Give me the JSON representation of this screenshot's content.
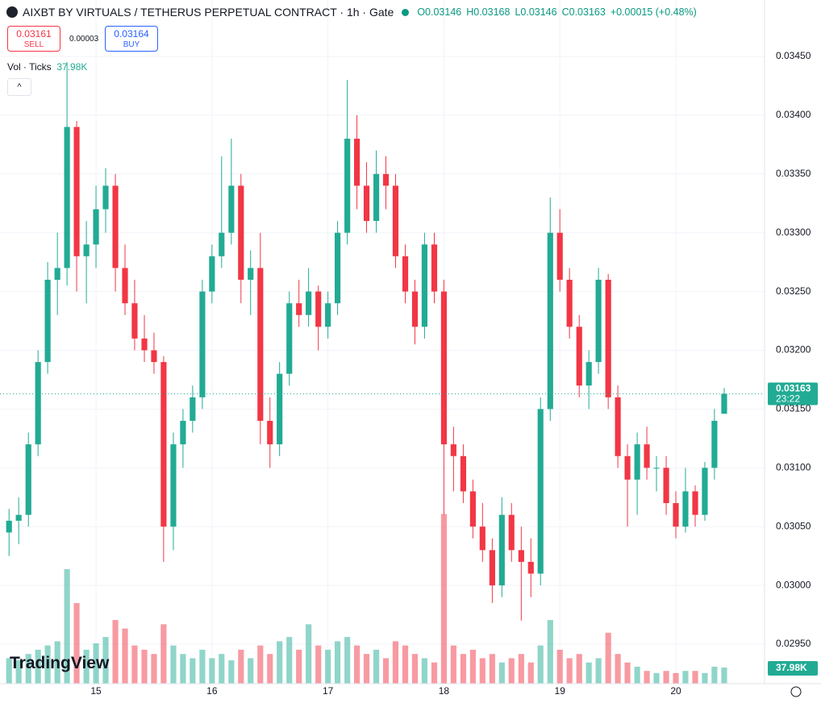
{
  "header": {
    "symbol": "AIXBT BY VIRTUALS / TETHERUS PERPETUAL CONTRACT · 1h · Gate",
    "open": "O0.03146",
    "high": "H0.03168",
    "low": "L0.03146",
    "close": "C0.03163",
    "change": "+0.00015 (+0.48%)"
  },
  "trade": {
    "sell_price": "0.03161",
    "sell": "SELL",
    "spread": "0.00003",
    "buy_price": "0.03164",
    "buy": "BUY"
  },
  "indicator": {
    "name": "Vol · Ticks"
  },
  "logo": "TradingView",
  "chart_data": {
    "type": "candlestick",
    "x": [
      14.25,
      14.333,
      14.417,
      14.5,
      14.583,
      14.667,
      14.75,
      14.833,
      14.917,
      15.0,
      15.083,
      15.167,
      15.25,
      15.333,
      15.417,
      15.5,
      15.583,
      15.667,
      15.75,
      15.833,
      15.917,
      16.0,
      16.083,
      16.167,
      16.25,
      16.333,
      16.417,
      16.5,
      16.583,
      16.667,
      16.75,
      16.833,
      16.917,
      17.0,
      17.083,
      17.167,
      17.25,
      17.333,
      17.417,
      17.5,
      17.583,
      17.667,
      17.75,
      17.833,
      17.917,
      18.0,
      18.083,
      18.167,
      18.25,
      18.333,
      18.417,
      18.5,
      18.583,
      18.667,
      18.75,
      18.833,
      18.917,
      19.0,
      19.083,
      19.167,
      19.25,
      19.333,
      19.417,
      19.5,
      19.583,
      19.667,
      19.75,
      19.833,
      19.917,
      20.0,
      20.083,
      20.167,
      20.25,
      20.333,
      20.417
    ],
    "open": [
      0.03045,
      0.03055,
      0.0306,
      0.0312,
      0.0319,
      0.0326,
      0.0327,
      0.0339,
      0.0328,
      0.0329,
      0.0332,
      0.0334,
      0.0327,
      0.0324,
      0.0321,
      0.032,
      0.0319,
      0.0305,
      0.0312,
      0.0314,
      0.0316,
      0.0325,
      0.0328,
      0.033,
      0.0334,
      0.0326,
      0.0327,
      0.0314,
      0.0312,
      0.0318,
      0.0324,
      0.0323,
      0.0325,
      0.0322,
      0.0324,
      0.033,
      0.0338,
      0.0334,
      0.0331,
      0.0335,
      0.0334,
      0.0328,
      0.0325,
      0.0322,
      0.0329,
      0.0325,
      0.0312,
      0.0311,
      0.0308,
      0.0305,
      0.0303,
      0.03,
      0.0306,
      0.0303,
      0.0302,
      0.0301,
      0.0315,
      0.033,
      0.0326,
      0.0322,
      0.0317,
      0.0319,
      0.0326,
      0.0316,
      0.0311,
      0.0309,
      0.0312,
      0.031,
      0.031,
      0.0307,
      0.0305,
      0.0308,
      0.0306,
      0.031,
      0.03146
    ],
    "high": [
      0.03065,
      0.03075,
      0.0313,
      0.032,
      0.03275,
      0.033,
      0.03445,
      0.03395,
      0.0331,
      0.0334,
      0.03355,
      0.0335,
      0.0329,
      0.0326,
      0.0323,
      0.03215,
      0.03195,
      0.0313,
      0.0315,
      0.0317,
      0.0326,
      0.0329,
      0.03365,
      0.0338,
      0.0335,
      0.03285,
      0.033,
      0.0316,
      0.0319,
      0.0325,
      0.0326,
      0.0327,
      0.03255,
      0.0325,
      0.0331,
      0.0343,
      0.034,
      0.0336,
      0.0337,
      0.03365,
      0.0335,
      0.0329,
      0.0326,
      0.033,
      0.033,
      0.0326,
      0.03135,
      0.0312,
      0.0309,
      0.0307,
      0.0304,
      0.03075,
      0.0307,
      0.0305,
      0.0304,
      0.0316,
      0.0333,
      0.0332,
      0.0327,
      0.0323,
      0.032,
      0.0327,
      0.03265,
      0.0317,
      0.0312,
      0.0313,
      0.03135,
      0.0311,
      0.0311,
      0.0308,
      0.031,
      0.03085,
      0.03105,
      0.0315,
      0.03168
    ],
    "low": [
      0.03025,
      0.03035,
      0.0305,
      0.0311,
      0.0318,
      0.0323,
      0.03255,
      0.0325,
      0.0324,
      0.0327,
      0.033,
      0.0325,
      0.0323,
      0.032,
      0.0319,
      0.0318,
      0.0302,
      0.0303,
      0.031,
      0.0313,
      0.0315,
      0.0324,
      0.0327,
      0.0329,
      0.0324,
      0.0323,
      0.0312,
      0.031,
      0.0311,
      0.0317,
      0.0322,
      0.0322,
      0.032,
      0.0321,
      0.0323,
      0.0329,
      0.0332,
      0.033,
      0.033,
      0.0332,
      0.0327,
      0.0324,
      0.03205,
      0.0321,
      0.0324,
      0.0306,
      0.0308,
      0.0307,
      0.0304,
      0.0302,
      0.02985,
      0.0299,
      0.0302,
      0.0297,
      0.0299,
      0.03,
      0.0314,
      0.0325,
      0.0321,
      0.0316,
      0.0315,
      0.0318,
      0.0315,
      0.031,
      0.0305,
      0.0306,
      0.0309,
      0.0308,
      0.0306,
      0.0304,
      0.03045,
      0.0305,
      0.03055,
      0.0309,
      0.03146
    ],
    "close": [
      0.03055,
      0.0306,
      0.0312,
      0.0319,
      0.0326,
      0.0327,
      0.0339,
      0.0328,
      0.0329,
      0.0332,
      0.0334,
      0.0327,
      0.0324,
      0.0321,
      0.032,
      0.0319,
      0.0305,
      0.0312,
      0.0314,
      0.0316,
      0.0325,
      0.0328,
      0.033,
      0.0334,
      0.0326,
      0.0327,
      0.0314,
      0.0312,
      0.0318,
      0.0324,
      0.0323,
      0.0325,
      0.0322,
      0.0324,
      0.033,
      0.0338,
      0.0334,
      0.0331,
      0.0335,
      0.0334,
      0.0328,
      0.0325,
      0.0322,
      0.0329,
      0.0325,
      0.0312,
      0.0311,
      0.0308,
      0.0305,
      0.0303,
      0.03,
      0.0306,
      0.0303,
      0.0302,
      0.0301,
      0.0315,
      0.033,
      0.0326,
      0.0322,
      0.0317,
      0.0319,
      0.0326,
      0.0316,
      0.0311,
      0.0309,
      0.0312,
      0.031,
      0.031,
      0.0307,
      0.0305,
      0.0308,
      0.0306,
      0.031,
      0.0314,
      0.03163
    ],
    "volume": [
      60,
      55,
      70,
      80,
      90,
      100,
      270,
      190,
      80,
      95,
      110,
      150,
      130,
      90,
      80,
      70,
      140,
      90,
      70,
      60,
      80,
      60,
      70,
      55,
      80,
      60,
      90,
      70,
      100,
      110,
      80,
      140,
      90,
      80,
      100,
      110,
      90,
      70,
      80,
      60,
      100,
      90,
      70,
      60,
      50,
      400,
      90,
      70,
      80,
      60,
      70,
      50,
      60,
      70,
      50,
      90,
      150,
      80,
      60,
      70,
      50,
      60,
      120,
      70,
      50,
      40,
      30,
      25,
      30,
      25,
      30,
      30,
      25,
      40,
      37.98
    ],
    "volume_last_label": "37.98K",
    "countdown": "23:22",
    "up_color": "#22ab94",
    "down_color": "#f23645",
    "xlim": [
      14.172,
      20.765
    ],
    "xticks": [
      15,
      16,
      17,
      18,
      19,
      20
    ],
    "ylim": [
      0.029164,
      0.03498
    ],
    "yticks": [
      {
        "value": 0.0295,
        "label": "0.02950"
      },
      {
        "value": 0.03,
        "label": "0.03000"
      },
      {
        "value": 0.0305,
        "label": "0.03050"
      },
      {
        "value": 0.031,
        "label": "0.03100"
      },
      {
        "value": 0.0315,
        "label": "0.03150"
      },
      {
        "value": 0.032,
        "label": "0.03200"
      },
      {
        "value": 0.0325,
        "label": "0.03250"
      },
      {
        "value": 0.033,
        "label": "0.03300"
      },
      {
        "value": 0.0335,
        "label": "0.03350"
      },
      {
        "value": 0.034,
        "label": "0.03400"
      },
      {
        "value": 0.0345,
        "label": "0.03450"
      }
    ],
    "vol_ylim": [
      0,
      500
    ],
    "grid": true
  }
}
